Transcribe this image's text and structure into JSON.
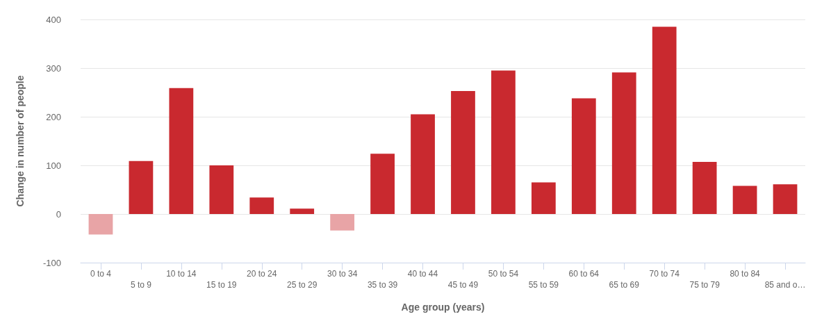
{
  "chart_data": {
    "type": "bar",
    "xlabel": "Age group (years)",
    "ylabel": "Change in number of people",
    "categories": [
      "0 to 4",
      "5 to 9",
      "10 to 14",
      "15 to 19",
      "20 to 24",
      "25 to 29",
      "30 to 34",
      "35 to 39",
      "40 to 44",
      "45 to 49",
      "50 to 54",
      "55 to 59",
      "60 to 64",
      "65 to 69",
      "70 to 74",
      "75 to 79",
      "80 to 84",
      "85 and o…"
    ],
    "values": [
      -42,
      109,
      259,
      100,
      34,
      11,
      -34,
      124,
      205,
      253,
      295,
      65,
      238,
      291,
      385,
      107,
      58,
      61
    ],
    "colors": [
      "#e8a4a6",
      "#c9292f",
      "#c9292f",
      "#c9292f",
      "#c9292f",
      "#c9292f",
      "#e8a4a6",
      "#c9292f",
      "#c9292f",
      "#c9292f",
      "#c9292f",
      "#c9292f",
      "#c9292f",
      "#c9292f",
      "#c9292f",
      "#c9292f",
      "#c9292f",
      "#c9292f"
    ],
    "ylim": [
      -100,
      400
    ],
    "yticks": [
      -100,
      0,
      100,
      200,
      300,
      400
    ],
    "grid": "y"
  }
}
